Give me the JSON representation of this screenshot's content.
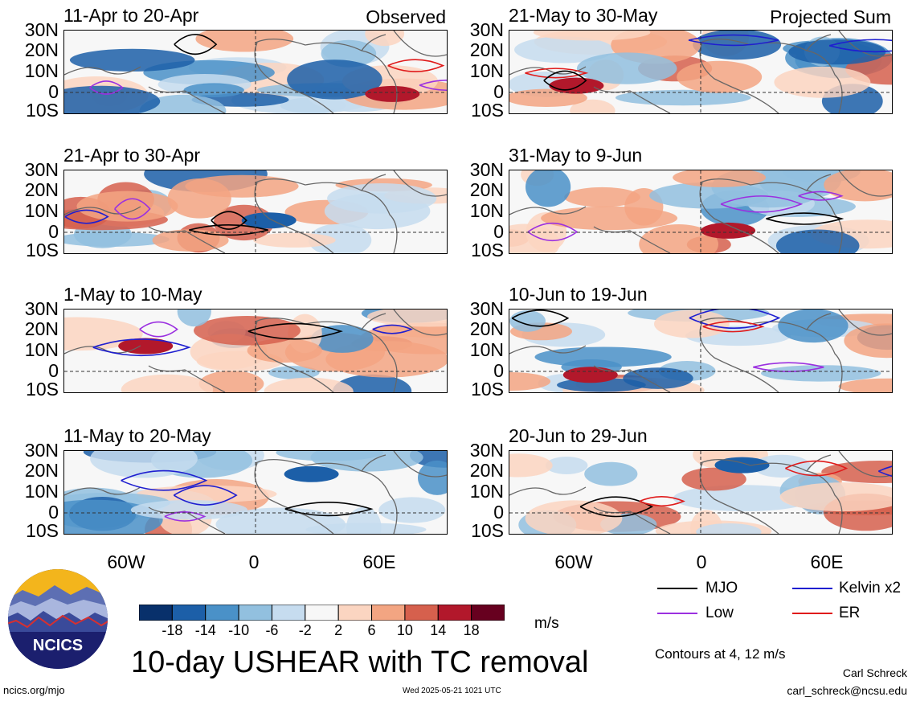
{
  "observed_label": "Observed",
  "projected_label": "Projected Sum",
  "lat_labels": [
    "30N",
    "20N",
    "10N",
    "0",
    "10S"
  ],
  "lon_labels": [
    "60W",
    "0",
    "60E"
  ],
  "left_panels": [
    {
      "period": "11-Apr to 20-Apr"
    },
    {
      "period": "21-Apr to 30-Apr"
    },
    {
      "period": "1-May to 10-May"
    },
    {
      "period": "11-May to 20-May"
    }
  ],
  "right_panels": [
    {
      "period": "21-May to 30-May"
    },
    {
      "period": "31-May to 9-Jun"
    },
    {
      "period": "10-Jun to 19-Jun"
    },
    {
      "period": "20-Jun to 29-Jun"
    }
  ],
  "colorbar": {
    "ticks": [
      "-18",
      "-14",
      "-10",
      "-6",
      "-2",
      "2",
      "6",
      "10",
      "14",
      "18"
    ],
    "colors": [
      "#08306b",
      "#1c5fa8",
      "#4a91c8",
      "#92c0df",
      "#c6dcef",
      "#f7f7f7",
      "#fbd5c1",
      "#f3a582",
      "#d6604d",
      "#b2182b",
      "#67001f"
    ],
    "units": "m/s"
  },
  "legend": [
    {
      "label": "MJO",
      "color": "#000000"
    },
    {
      "label": "Kelvin x2",
      "color": "#1f1fd0"
    },
    {
      "label": "Low",
      "color": "#9b30e0"
    },
    {
      "label": "ER",
      "color": "#e01b1b"
    }
  ],
  "contours_note": "Contours at 4, 12 m/s",
  "title": "10-day USHEAR with TC removal",
  "logo_text": "NCICS",
  "url": "ncics.org/mjo",
  "timestamp": "Wed 2025-05-21 1021 UTC",
  "author": "Carl Schreck",
  "email": "carl_schreck@ncsu.edu"
}
